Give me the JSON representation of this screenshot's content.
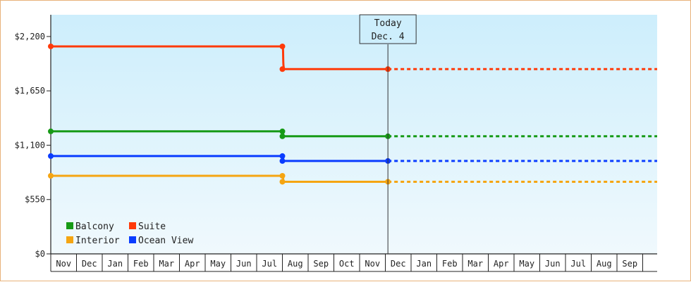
{
  "chart_data": {
    "type": "line",
    "title": "",
    "xlabel": "",
    "ylabel": "",
    "ylim": [
      0,
      2420
    ],
    "y_ticks": [
      {
        "value": 0,
        "label": "$0"
      },
      {
        "value": 550,
        "label": "$550"
      },
      {
        "value": 1100,
        "label": "$1,100"
      },
      {
        "value": 1650,
        "label": "$1,650"
      },
      {
        "value": 2200,
        "label": "$2,200"
      }
    ],
    "x_months": [
      "Nov",
      "Dec",
      "Jan",
      "Feb",
      "Mar",
      "Apr",
      "May",
      "Jun",
      "Jul",
      "Aug",
      "Sep",
      "Oct",
      "Nov",
      "Dec",
      "Jan",
      "Feb",
      "Mar",
      "Apr",
      "May",
      "Jun",
      "Jul",
      "Aug",
      "Sep"
    ],
    "x_range_months": [
      0,
      23.5
    ],
    "today": {
      "line1": "Today",
      "line2": "Dec. 4",
      "x": 13.1
    },
    "price_drop_x": 9.0,
    "series": [
      {
        "name": "Suite",
        "color": "#ff3a0a",
        "before": 2100,
        "after": 1870
      },
      {
        "name": "Balcony",
        "color": "#169a16",
        "before": 1240,
        "after": 1190
      },
      {
        "name": "Ocean View",
        "color": "#0a3cff",
        "before": 990,
        "after": 940
      },
      {
        "name": "Interior",
        "color": "#f5a512",
        "before": 790,
        "after": 730
      }
    ],
    "legend": {
      "placement": "bottom-left",
      "items": [
        {
          "name": "Balcony",
          "color": "#169a16"
        },
        {
          "name": "Suite",
          "color": "#ff3a0a"
        },
        {
          "name": "Interior",
          "color": "#f5a512"
        },
        {
          "name": "Ocean View",
          "color": "#0a3cff"
        }
      ]
    },
    "grid": false,
    "background_gradient": [
      "#cdeefc",
      "#f0f9fd"
    ]
  }
}
